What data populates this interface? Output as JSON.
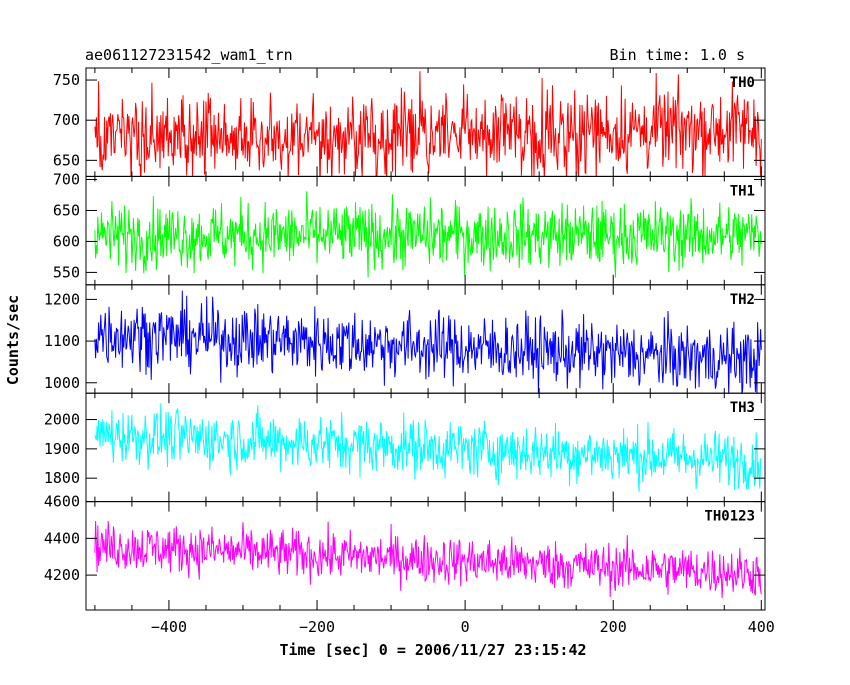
{
  "chart_data": {
    "type": "line",
    "title": "ae061127231542_wam1_trn",
    "bin_time": "Bin time: 1.0 s",
    "xlabel": "Time [sec] 0 = 2006/11/27 23:15:42",
    "ylabel": "Counts/sec",
    "xlim": [
      -512,
      405
    ],
    "x_range": [
      -500,
      400
    ],
    "bin_seconds": 1.0,
    "x_ticks": [
      -400,
      -200,
      0,
      200,
      400
    ],
    "x_tick_labels": [
      "−400",
      "−200",
      "0",
      "200",
      "400"
    ],
    "grid": false,
    "panels": [
      {
        "name": "TH0",
        "color": "#ff0000",
        "ylim": [
          630,
          765
        ],
        "y_ticks": [
          650,
          700,
          750
        ],
        "y_tick_labels": [
          "650",
          "700",
          "750"
        ],
        "mean_start": 675,
        "mean_end": 690,
        "noise": 26
      },
      {
        "name": "TH1",
        "color": "#00ff00",
        "ylim": [
          530,
          705
        ],
        "y_ticks": [
          550,
          600,
          650,
          700
        ],
        "y_tick_labels": [
          "550",
          "600",
          "650",
          "700"
        ],
        "mean_start": 610,
        "mean_end": 610,
        "noise": 26
      },
      {
        "name": "TH2",
        "color": "#0000ff",
        "ylim": [
          975,
          1235
        ],
        "y_ticks": [
          1000,
          1100,
          1200
        ],
        "y_tick_labels": [
          "1000",
          "1100",
          "1200"
        ],
        "mean_start": 1120,
        "mean_end": 1055,
        "noise": 40
      },
      {
        "name": "TH3",
        "color": "#00ffff",
        "ylim": [
          1720,
          2090
        ],
        "y_ticks": [
          1800,
          1900,
          2000
        ],
        "y_tick_labels": [
          "1800",
          "1900",
          "2000"
        ],
        "mean_start": 1950,
        "mean_end": 1860,
        "noise": 48
      },
      {
        "name": "TH0123",
        "color": "#ff00ff",
        "ylim": [
          4010,
          4600
        ],
        "y_ticks": [
          4200,
          4400,
          4600
        ],
        "y_tick_labels": [
          "4200",
          "4400",
          "4600"
        ],
        "mean_start": 4360,
        "mean_end": 4210,
        "noise": 65
      }
    ]
  }
}
